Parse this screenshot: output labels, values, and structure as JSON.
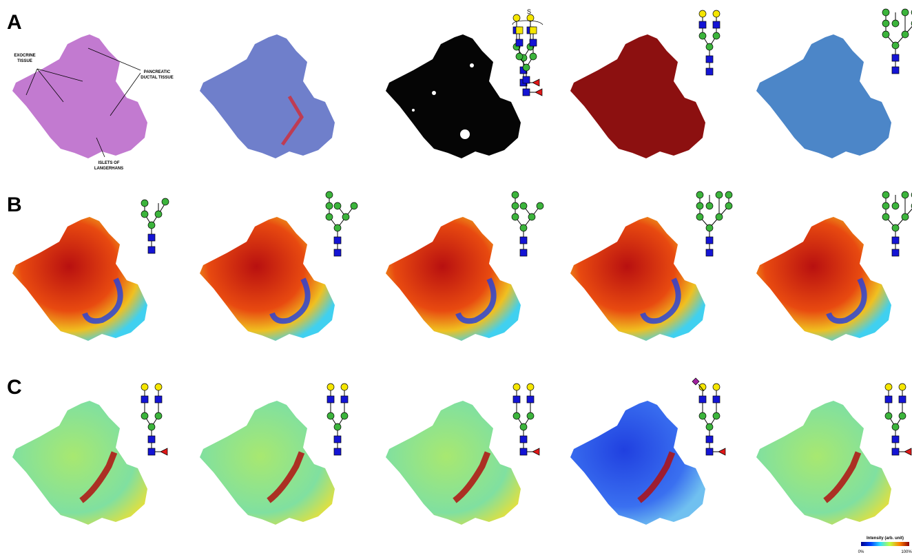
{
  "panels": {
    "a": "A",
    "b": "B",
    "c": "C"
  },
  "annotations": {
    "exocrine": [
      "EXOCRINE",
      "TISSUE"
    ],
    "ductal": [
      "PANCREATIC",
      "DUCTAL TISSUE"
    ],
    "islets": [
      "ISLETS OF",
      "LANGERHANS"
    ],
    "bracket": "S"
  },
  "colorbar": {
    "title": "Intensity (arb. unit)",
    "min": "0%",
    "max": "100%"
  }
}
